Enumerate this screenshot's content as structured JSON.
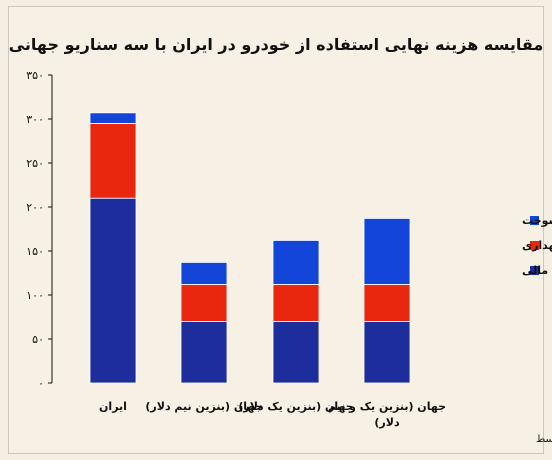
{
  "chart_data": {
    "type": "bar",
    "stacked": true,
    "title": "مقایسه هزینه نهایی استفاده از خودرو در ایران با سه سناریو جهانی",
    "ylim": [
      0,
      350
    ],
    "yticks": [
      "۰",
      "۵۰",
      "۱۰۰",
      "۱۵۰",
      "۲۰۰",
      "۲۵۰",
      "۳۰۰",
      "۳۵۰"
    ],
    "categories": [
      [
        "ایران"
      ],
      [
        "جهان (بنزین نیم دلار)"
      ],
      [
        "جهان (بنزین یک دلار)"
      ],
      [
        "جهان (بنزین یک و نیم",
        "دلار)"
      ]
    ],
    "series": [
      {
        "name": "هزینه مالی",
        "color": "#1d2e9c",
        "values": [
          210,
          70,
          70,
          70
        ]
      },
      {
        "name": "هزینه نگهداری",
        "color": "#e8270e",
        "values": [
          85,
          42,
          42,
          42
        ]
      },
      {
        "name": "هزینه سوخت",
        "color": "#1346d8",
        "values": [
          12,
          25,
          50,
          75
        ]
      }
    ],
    "legend_position": "right",
    "grid": false
  },
  "footnote": "تحلیل و استنتاج: احسان سلطانی بر اساس محاسبات هزینه تمام شده استفاده از یک خودرو خارجی با قیمت متوسط"
}
